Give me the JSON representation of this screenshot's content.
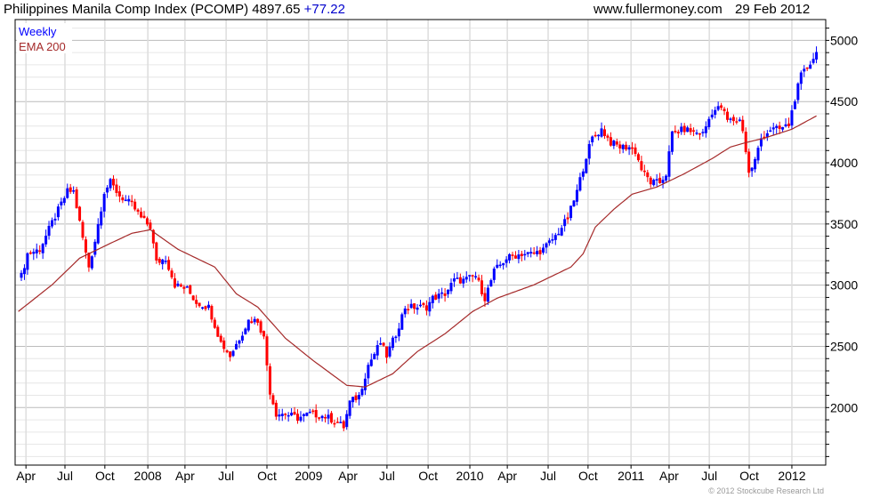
{
  "header": {
    "title": "Philippines Manila Comp Index (PCOMP) 4897.65",
    "change": "+77.22",
    "site": "www.fullermoney.com",
    "date": "29 Feb 2012"
  },
  "legend": {
    "series1": "Weekly",
    "series2": "EMA 200"
  },
  "copyright": "© 2012 Stockcube Research Ltd",
  "colors": {
    "up": "#0000ff",
    "down": "#ff0000",
    "ema": "#a52a2a",
    "change": "#0000cc",
    "grid_major": "#bbbbbb",
    "grid_minor": "#e6e6e6"
  },
  "chart_data": {
    "type": "candlestick",
    "title": "Philippines Manila Comp Index (PCOMP)",
    "interval": "Weekly",
    "x_unit": "week index (0 = late Mar 2007, 259 = late Feb 2012)",
    "ylim": [
      1530,
      5170
    ],
    "y_ticks": [
      2000,
      2500,
      3000,
      3500,
      4000,
      4500,
      5000
    ],
    "y_minor_step": 100,
    "x_ticks": [
      {
        "label": "Apr",
        "week": 1.5
      },
      {
        "label": "Jul",
        "week": 14.2
      },
      {
        "label": "Oct",
        "week": 27.2
      },
      {
        "label": "2008",
        "week": 41.2
      },
      {
        "label": "Apr",
        "week": 53.3
      },
      {
        "label": "Jul",
        "week": 66.7
      },
      {
        "label": "Oct",
        "week": 80.0
      },
      {
        "label": "2009",
        "week": 93.6
      },
      {
        "label": "Apr",
        "week": 106.4
      },
      {
        "label": "Jul",
        "week": 119.1
      },
      {
        "label": "Oct",
        "week": 132.5
      },
      {
        "label": "2010",
        "week": 146.1
      },
      {
        "label": "Apr",
        "week": 158.3
      },
      {
        "label": "Jul",
        "week": 171.6
      },
      {
        "label": "Oct",
        "week": 184.6
      },
      {
        "label": "2011",
        "week": 198.6
      },
      {
        "label": "Apr",
        "week": 211.0
      },
      {
        "label": "Jul",
        "week": 224.1
      },
      {
        "label": "Oct",
        "week": 237.1
      },
      {
        "label": "2012",
        "week": 251.0
      }
    ],
    "weeks": 260,
    "close_keypoints": [
      [
        0,
        3075
      ],
      [
        2,
        3257
      ],
      [
        6,
        3293
      ],
      [
        10,
        3511
      ],
      [
        15,
        3766
      ],
      [
        17,
        3766
      ],
      [
        19,
        3511
      ],
      [
        21,
        3257
      ],
      [
        22,
        3150
      ],
      [
        24,
        3365
      ],
      [
        27,
        3766
      ],
      [
        29,
        3838
      ],
      [
        32,
        3730
      ],
      [
        36,
        3657
      ],
      [
        39,
        3548
      ],
      [
        42,
        3475
      ],
      [
        44,
        3184
      ],
      [
        47,
        3221
      ],
      [
        50,
        3003
      ],
      [
        54,
        2967
      ],
      [
        57,
        2858
      ],
      [
        61,
        2821
      ],
      [
        65,
        2531
      ],
      [
        68,
        2422
      ],
      [
        71,
        2567
      ],
      [
        74,
        2712
      ],
      [
        77,
        2712
      ],
      [
        79,
        2567
      ],
      [
        81,
        2131
      ],
      [
        83,
        1950
      ],
      [
        86,
        1950
      ],
      [
        90,
        1914
      ],
      [
        94,
        1950
      ],
      [
        99,
        1928
      ],
      [
        103,
        1877
      ],
      [
        105,
        1841
      ],
      [
        107,
        2044
      ],
      [
        110,
        2095
      ],
      [
        113,
        2349
      ],
      [
        117,
        2531
      ],
      [
        119,
        2422
      ],
      [
        122,
        2603
      ],
      [
        125,
        2821
      ],
      [
        129,
        2821
      ],
      [
        132,
        2821
      ],
      [
        134,
        2894
      ],
      [
        138,
        2930
      ],
      [
        141,
        3039
      ],
      [
        144,
        3039
      ],
      [
        148,
        3075
      ],
      [
        151,
        2894
      ],
      [
        154,
        3112
      ],
      [
        158,
        3221
      ],
      [
        163,
        3257
      ],
      [
        167,
        3257
      ],
      [
        170,
        3293
      ],
      [
        174,
        3402
      ],
      [
        178,
        3548
      ],
      [
        181,
        3766
      ],
      [
        184,
        4056
      ],
      [
        186,
        4201
      ],
      [
        189,
        4274
      ],
      [
        192,
        4165
      ],
      [
        195,
        4129
      ],
      [
        198,
        4129
      ],
      [
        200,
        4092
      ],
      [
        202,
        3947
      ],
      [
        205,
        3838
      ],
      [
        208,
        3838
      ],
      [
        210,
        3911
      ],
      [
        212,
        4238
      ],
      [
        216,
        4274
      ],
      [
        219,
        4252
      ],
      [
        222,
        4238
      ],
      [
        225,
        4419
      ],
      [
        228,
        4455
      ],
      [
        230,
        4347
      ],
      [
        234,
        4347
      ],
      [
        235,
        4274
      ],
      [
        237,
        3911
      ],
      [
        239,
        4020
      ],
      [
        241,
        4201
      ],
      [
        244,
        4274
      ],
      [
        247,
        4274
      ],
      [
        250,
        4310
      ],
      [
        252,
        4528
      ],
      [
        254,
        4710
      ],
      [
        256,
        4782
      ],
      [
        259,
        4898
      ]
    ],
    "ema_keypoints": [
      [
        -1,
        2785
      ],
      [
        10,
        3003
      ],
      [
        19,
        3221
      ],
      [
        28,
        3330
      ],
      [
        36,
        3424
      ],
      [
        42,
        3453
      ],
      [
        51,
        3293
      ],
      [
        63,
        3148
      ],
      [
        70,
        2930
      ],
      [
        77,
        2821
      ],
      [
        86,
        2567
      ],
      [
        95,
        2385
      ],
      [
        106,
        2182
      ],
      [
        112,
        2168
      ],
      [
        121,
        2277
      ],
      [
        129,
        2458
      ],
      [
        138,
        2603
      ],
      [
        147,
        2785
      ],
      [
        155,
        2894
      ],
      [
        167,
        3003
      ],
      [
        179,
        3148
      ],
      [
        183,
        3257
      ],
      [
        187,
        3475
      ],
      [
        193,
        3620
      ],
      [
        199,
        3744
      ],
      [
        207,
        3802
      ],
      [
        216,
        3911
      ],
      [
        225,
        4034
      ],
      [
        231,
        4129
      ],
      [
        236,
        4165
      ],
      [
        242,
        4201
      ],
      [
        251,
        4274
      ],
      [
        259,
        4383
      ]
    ]
  }
}
